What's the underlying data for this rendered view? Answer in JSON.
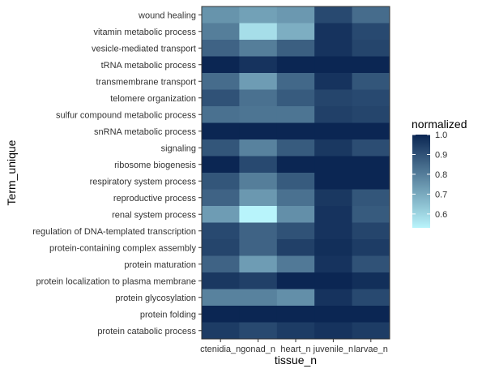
{
  "chart_data": {
    "type": "heatmap",
    "xlabel": "tissue_n",
    "ylabel": "Term_unique",
    "x": [
      "ctenidia_n",
      "gonad_n",
      "heart_n",
      "juvenile_n",
      "larvae_n"
    ],
    "y": [
      "wound healing",
      "vitamin metabolic process",
      "vesicle-mediated transport",
      "tRNA metabolic process",
      "transmembrane transport",
      "telomere organization",
      "sulfur compound metabolic process",
      "snRNA metabolic process",
      "signaling",
      "ribosome biogenesis",
      "respiratory system process",
      "reproductive process",
      "renal system process",
      "regulation of DNA-templated transcription",
      "protein-containing complex assembly",
      "protein maturation",
      "protein localization to plasma membrane",
      "protein glycosylation",
      "protein folding",
      "protein catabolic process"
    ],
    "values": [
      [
        0.75,
        0.72,
        0.74,
        0.92,
        0.84
      ],
      [
        0.8,
        0.58,
        0.69,
        0.97,
        0.92
      ],
      [
        0.86,
        0.8,
        0.87,
        0.97,
        0.93
      ],
      [
        1.0,
        0.97,
        1.0,
        1.0,
        1.0
      ],
      [
        0.84,
        0.73,
        0.85,
        0.97,
        0.89
      ],
      [
        0.9,
        0.83,
        0.88,
        0.93,
        0.92
      ],
      [
        0.83,
        0.82,
        0.82,
        0.94,
        0.93
      ],
      [
        1.0,
        1.0,
        1.0,
        1.0,
        1.0
      ],
      [
        0.89,
        0.79,
        0.88,
        0.96,
        0.91
      ],
      [
        1.0,
        0.92,
        1.0,
        1.0,
        1.0
      ],
      [
        0.89,
        0.8,
        0.88,
        1.0,
        1.0
      ],
      [
        0.86,
        0.74,
        0.83,
        0.96,
        0.89
      ],
      [
        0.73,
        0.53,
        0.76,
        0.97,
        0.88
      ],
      [
        0.92,
        0.86,
        0.9,
        0.97,
        0.93
      ],
      [
        0.93,
        0.86,
        0.94,
        0.98,
        0.95
      ],
      [
        0.86,
        0.73,
        0.81,
        0.97,
        0.9
      ],
      [
        0.96,
        0.94,
        1.0,
        1.0,
        0.98
      ],
      [
        0.79,
        0.79,
        0.76,
        0.97,
        0.92
      ],
      [
        1.0,
        1.0,
        1.0,
        1.0,
        1.0
      ],
      [
        0.95,
        0.92,
        0.95,
        0.97,
        0.95
      ]
    ],
    "legend": {
      "title": "normalized",
      "ticks": [
        0.6,
        0.7,
        0.8,
        0.9,
        1.0
      ],
      "tick_labels": [
        "0.6",
        "0.7",
        "0.8",
        "0.9",
        "1.0"
      ],
      "range": [
        0.53,
        1.0
      ],
      "placement": "right"
    },
    "colors": {
      "low": "#b8f4fb",
      "high": "#0b2653"
    },
    "grid": false
  }
}
